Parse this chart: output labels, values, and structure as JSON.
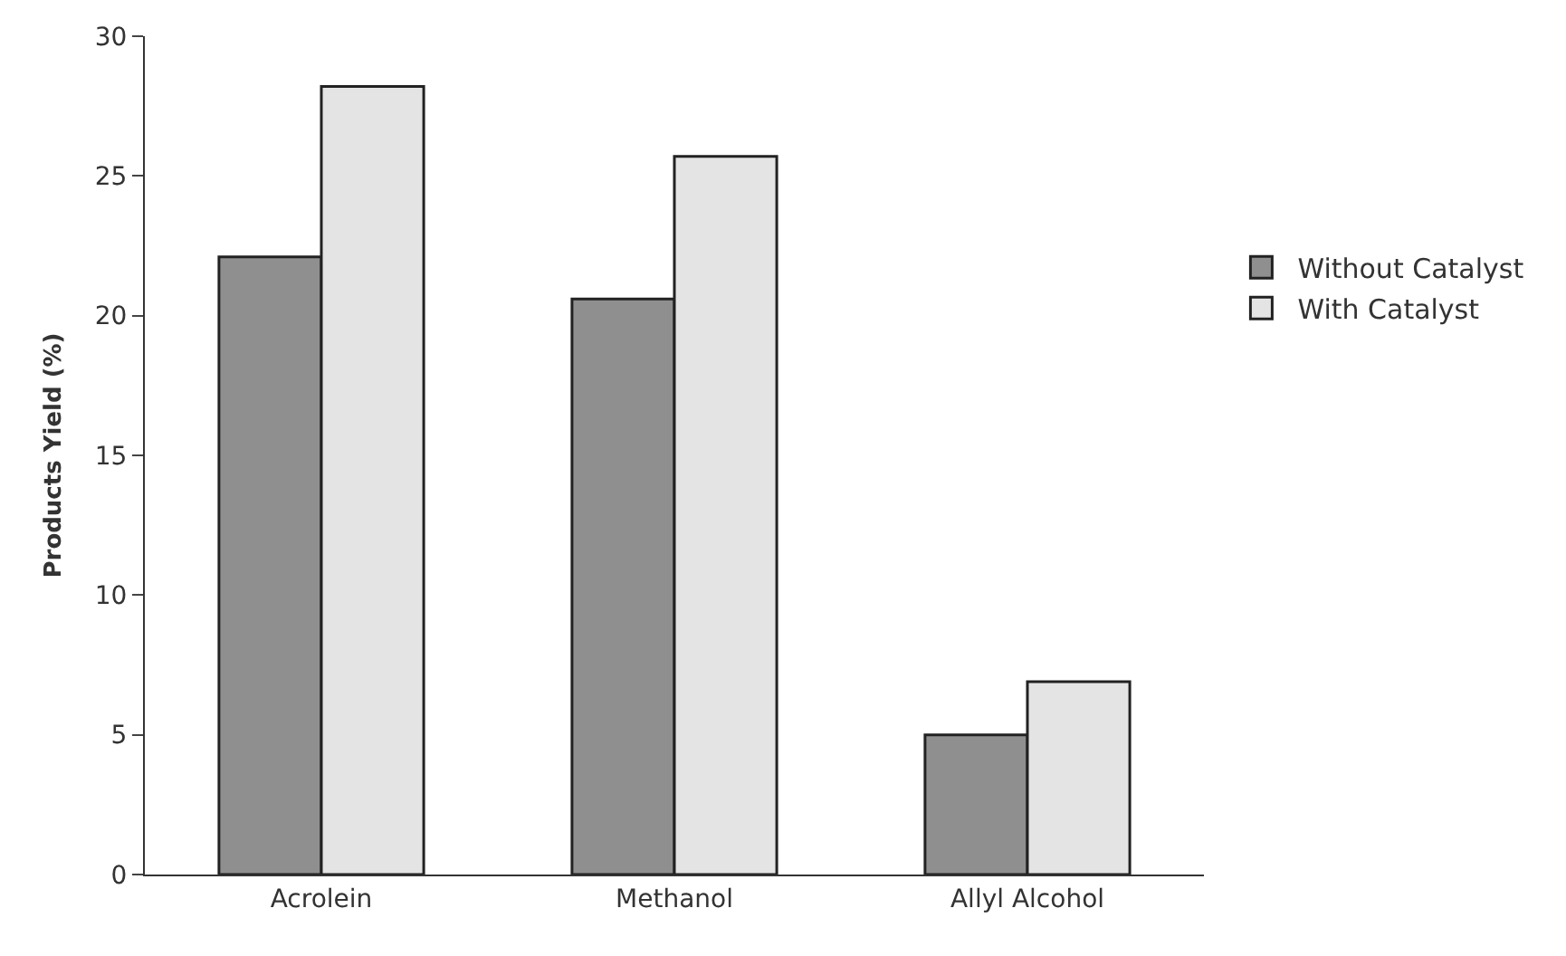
{
  "chart_data": {
    "type": "bar",
    "ylabel": "Products Yield (%)",
    "categories": [
      "Acrolein",
      "Methanol",
      "Allyl Alcohol"
    ],
    "series": [
      {
        "name": "Without Catalyst",
        "color": "#8f8f8f",
        "values": [
          22.1,
          20.6,
          5.0
        ]
      },
      {
        "name": "With Catalyst",
        "color": "#e4e4e4",
        "values": [
          28.2,
          25.7,
          6.9
        ]
      }
    ],
    "ylim": [
      0,
      30
    ],
    "yticks": [
      0,
      5,
      10,
      15,
      20,
      25,
      30
    ],
    "legend": "right"
  }
}
